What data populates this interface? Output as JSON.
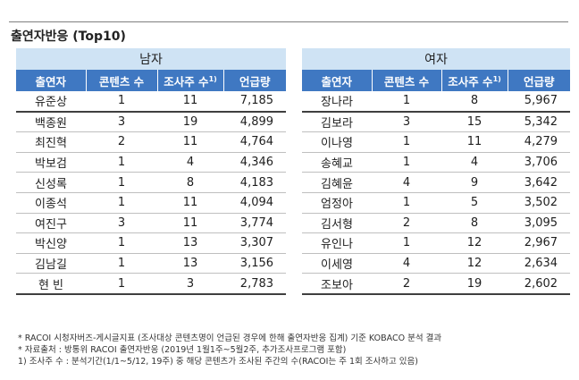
{
  "title": "출연자반응 (Top10)",
  "male": {
    "group_label": "남자",
    "headers": [
      "출연자",
      "콘텐츠 수",
      "조사주 수",
      "언급량"
    ],
    "header_sup": "1)",
    "rows": [
      [
        "유준상",
        "1",
        "11",
        "7,185"
      ],
      [
        "백종원",
        "3",
        "19",
        "4,899"
      ],
      [
        "최진혁",
        "2",
        "11",
        "4,764"
      ],
      [
        "박보검",
        "1",
        "4",
        "4,346"
      ],
      [
        "신성록",
        "1",
        "8",
        "4,183"
      ],
      [
        "이종석",
        "1",
        "11",
        "4,094"
      ],
      [
        "여진구",
        "3",
        "11",
        "3,774"
      ],
      [
        "박신양",
        "1",
        "13",
        "3,307"
      ],
      [
        "김남길",
        "1",
        "13",
        "3,156"
      ],
      [
        "현 빈",
        "1",
        "3",
        "2,783"
      ]
    ]
  },
  "female": {
    "group_label": "여자",
    "headers": [
      "출연자",
      "콘텐츠 수",
      "조사주 수",
      "언급량"
    ],
    "header_sup": "1)",
    "rows": [
      [
        "장나라",
        "1",
        "8",
        "5,967"
      ],
      [
        "김보라",
        "3",
        "15",
        "5,342"
      ],
      [
        "이나영",
        "1",
        "11",
        "4,279"
      ],
      [
        "송혜교",
        "1",
        "4",
        "3,706"
      ],
      [
        "김혜윤",
        "4",
        "9",
        "3,642"
      ],
      [
        "엄정아",
        "1",
        "5",
        "3,502"
      ],
      [
        "김서형",
        "2",
        "8",
        "3,095"
      ],
      [
        "유인나",
        "1",
        "12",
        "2,967"
      ],
      [
        "이세영",
        "4",
        "12",
        "2,634"
      ],
      [
        "조보아",
        "2",
        "19",
        "2,602"
      ]
    ]
  },
  "notes": [
    "* RACOI 시청자버즈-게시글지표 (조사대상 콘텐츠명이 언급된 경우에 한해 출연자반응 집계) 기준 KOBACO 분석 결과",
    "* 자료출처 : 방통위 RACOI 출연자반응 (2019년 1월1주~5월2주, 추가조사프로그램 포함)",
    "1) 조사주 수 : 분석기간(1/1~5/12, 19주) 중 해당 콘텐츠가 조사된 주간의 수(RACOI는 주 1회 조사하고 있음)"
  ]
}
